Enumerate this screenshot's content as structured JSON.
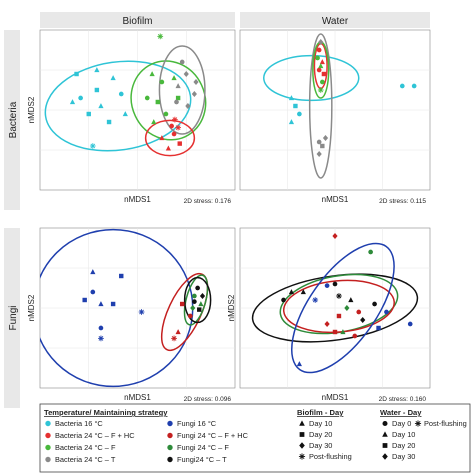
{
  "colors": {
    "b16": "#2fc4d6",
    "b24hc": "#e53030",
    "b24f": "#49b83c",
    "b24t": "#8a8a8a",
    "f16": "#1f3fae",
    "f24hc": "#c42020",
    "f24f": "#2e8b3a",
    "f24t": "#111111",
    "panel_bg": "#ffffff",
    "strip_bg": "#e8e8e8",
    "grid": "#e6e6e6"
  },
  "chart_data": [
    {
      "type": "scatter",
      "row": "Bacteria",
      "col": "Biofilm",
      "xlabel": "nMDS1",
      "ylabel": "nMDS2",
      "stress_label": "2D stress: 0.176",
      "xlim": [
        -1.2,
        1.2
      ],
      "ylim": [
        -1.0,
        1.0
      ],
      "ellipses": [
        {
          "group": "b16",
          "cx": -0.24,
          "cy": 0.05,
          "rx": 0.9,
          "ry": 0.55,
          "angle": -8
        },
        {
          "group": "b24f",
          "cx": 0.38,
          "cy": 0.12,
          "rx": 0.45,
          "ry": 0.5,
          "angle": -25
        },
        {
          "group": "b24t",
          "cx": 0.55,
          "cy": 0.25,
          "rx": 0.28,
          "ry": 0.55,
          "angle": 0
        },
        {
          "group": "b24hc",
          "cx": 0.4,
          "cy": -0.35,
          "rx": 0.3,
          "ry": 0.22,
          "angle": 0
        }
      ],
      "points": [
        {
          "group": "b16",
          "shape": "square",
          "x": -0.75,
          "y": 0.45
        },
        {
          "group": "b16",
          "shape": "square",
          "x": -0.5,
          "y": 0.25
        },
        {
          "group": "b16",
          "shape": "triangle",
          "x": -0.5,
          "y": 0.5
        },
        {
          "group": "b16",
          "shape": "triangle",
          "x": -0.3,
          "y": 0.4
        },
        {
          "group": "b16",
          "shape": "circle",
          "x": -0.2,
          "y": 0.2
        },
        {
          "group": "b16",
          "shape": "square",
          "x": -0.6,
          "y": -0.05
        },
        {
          "group": "b16",
          "shape": "triangle",
          "x": -0.45,
          "y": 0.05
        },
        {
          "group": "b16",
          "shape": "circle",
          "x": -0.7,
          "y": 0.15
        },
        {
          "group": "b16",
          "shape": "triangle",
          "x": -0.15,
          "y": -0.05
        },
        {
          "group": "b16",
          "shape": "square",
          "x": -0.35,
          "y": -0.15
        },
        {
          "group": "b16",
          "shape": "triangle",
          "x": -0.8,
          "y": 0.1
        },
        {
          "group": "b16",
          "shape": "star",
          "x": -0.55,
          "y": -0.45
        },
        {
          "group": "b24f",
          "shape": "star",
          "x": 0.28,
          "y": 0.92
        },
        {
          "group": "b24f",
          "shape": "triangle",
          "x": 0.18,
          "y": 0.45
        },
        {
          "group": "b24f",
          "shape": "circle",
          "x": 0.3,
          "y": 0.35
        },
        {
          "group": "b24f",
          "shape": "triangle",
          "x": 0.45,
          "y": 0.4
        },
        {
          "group": "b24f",
          "shape": "circle",
          "x": 0.12,
          "y": 0.15
        },
        {
          "group": "b24f",
          "shape": "square",
          "x": 0.25,
          "y": 0.1
        },
        {
          "group": "b24f",
          "shape": "circle",
          "x": 0.35,
          "y": -0.05
        },
        {
          "group": "b24f",
          "shape": "triangle",
          "x": 0.2,
          "y": -0.15
        },
        {
          "group": "b24f",
          "shape": "square",
          "x": 0.5,
          "y": 0.15
        },
        {
          "group": "b24t",
          "shape": "circle",
          "x": 0.55,
          "y": 0.6
        },
        {
          "group": "b24t",
          "shape": "diamond",
          "x": 0.6,
          "y": 0.45
        },
        {
          "group": "b24t",
          "shape": "triangle",
          "x": 0.5,
          "y": 0.3
        },
        {
          "group": "b24t",
          "shape": "diamond",
          "x": 0.7,
          "y": 0.2
        },
        {
          "group": "b24t",
          "shape": "diamond",
          "x": 0.62,
          "y": 0.05
        },
        {
          "group": "b24t",
          "shape": "circle",
          "x": 0.48,
          "y": 0.1
        },
        {
          "group": "b24t",
          "shape": "diamond",
          "x": 0.72,
          "y": 0.35
        },
        {
          "group": "b24hc",
          "shape": "triangle",
          "x": 0.3,
          "y": -0.35
        },
        {
          "group": "b24hc",
          "shape": "circle",
          "x": 0.45,
          "y": -0.3
        },
        {
          "group": "b24hc",
          "shape": "triangle",
          "x": 0.38,
          "y": -0.48
        },
        {
          "group": "b24hc",
          "shape": "square",
          "x": 0.52,
          "y": -0.42
        },
        {
          "group": "b24hc",
          "shape": "circle",
          "x": 0.42,
          "y": -0.2
        },
        {
          "group": "b24hc",
          "shape": "star",
          "x": 0.46,
          "y": -0.12
        },
        {
          "group": "b24hc",
          "shape": "star",
          "x": 0.5,
          "y": -0.22
        }
      ]
    },
    {
      "type": "scatter",
      "row": "Bacteria",
      "col": "Water",
      "xlabel": "nMDS1",
      "ylabel": "",
      "stress_label": "2D stress: 0.115",
      "xlim": [
        -1.2,
        1.2
      ],
      "ylim": [
        -1.0,
        1.0
      ],
      "ellipses": [
        {
          "group": "b16",
          "cx": -0.3,
          "cy": 0.4,
          "rx": 0.6,
          "ry": 0.28,
          "angle": 0
        },
        {
          "group": "b24t",
          "cx": -0.18,
          "cy": 0.05,
          "rx": 0.14,
          "ry": 0.9,
          "angle": 0
        },
        {
          "group": "b24hc",
          "cx": -0.18,
          "cy": 0.55,
          "rx": 0.08,
          "ry": 0.28,
          "angle": 0
        },
        {
          "group": "b24f",
          "cx": -0.18,
          "cy": 0.5,
          "rx": 0.1,
          "ry": 0.35,
          "angle": 0
        }
      ],
      "points": [
        {
          "group": "b16",
          "shape": "circle",
          "x": 0.85,
          "y": 0.3
        },
        {
          "group": "b16",
          "shape": "circle",
          "x": 1.0,
          "y": 0.3
        },
        {
          "group": "b16",
          "shape": "triangle",
          "x": -0.55,
          "y": 0.15
        },
        {
          "group": "b16",
          "shape": "square",
          "x": -0.5,
          "y": 0.05
        },
        {
          "group": "b16",
          "shape": "circle",
          "x": -0.45,
          "y": -0.05
        },
        {
          "group": "b16",
          "shape": "triangle",
          "x": -0.55,
          "y": -0.15
        },
        {
          "group": "b24hc",
          "shape": "circle",
          "x": -0.2,
          "y": 0.75
        },
        {
          "group": "b24hc",
          "shape": "triangle",
          "x": -0.16,
          "y": 0.6
        },
        {
          "group": "b24hc",
          "shape": "circle",
          "x": -0.2,
          "y": 0.5
        },
        {
          "group": "b24hc",
          "shape": "square",
          "x": -0.14,
          "y": 0.45
        },
        {
          "group": "b24f",
          "shape": "circle",
          "x": -0.22,
          "y": 0.65
        },
        {
          "group": "b24f",
          "shape": "triangle",
          "x": -0.18,
          "y": 0.55
        },
        {
          "group": "b24f",
          "shape": "circle",
          "x": -0.16,
          "y": 0.35
        },
        {
          "group": "b24f",
          "shape": "star",
          "x": -0.18,
          "y": 0.25
        },
        {
          "group": "b24t",
          "shape": "diamond",
          "x": -0.18,
          "y": 0.85
        },
        {
          "group": "b24t",
          "shape": "diamond",
          "x": -0.12,
          "y": -0.35
        },
        {
          "group": "b24t",
          "shape": "square",
          "x": -0.16,
          "y": -0.45
        },
        {
          "group": "b24t",
          "shape": "diamond",
          "x": -0.2,
          "y": -0.55
        },
        {
          "group": "b24t",
          "shape": "circle",
          "x": -0.2,
          "y": -0.4
        }
      ]
    },
    {
      "type": "scatter",
      "row": "Fungi",
      "col": "Biofilm",
      "xlabel": "nMDS1",
      "ylabel": "nMDS2",
      "stress_label": "2D stress: 0.096",
      "xlim": [
        -1.2,
        1.2
      ],
      "ylim": [
        -1.0,
        1.0
      ],
      "ellipses": [
        {
          "group": "f16",
          "cx": -0.3,
          "cy": 0.0,
          "rx": 0.98,
          "ry": 0.98,
          "angle": 0
        },
        {
          "group": "f24hc",
          "cx": 0.58,
          "cy": -0.05,
          "rx": 0.2,
          "ry": 0.52,
          "angle": 25
        },
        {
          "group": "f24f",
          "cx": 0.72,
          "cy": 0.1,
          "rx": 0.12,
          "ry": 0.32,
          "angle": 15
        },
        {
          "group": "f24t",
          "cx": 0.74,
          "cy": 0.1,
          "rx": 0.16,
          "ry": 0.28,
          "angle": 0
        }
      ],
      "points": [
        {
          "group": "f16",
          "shape": "triangle",
          "x": -0.55,
          "y": 0.45
        },
        {
          "group": "f16",
          "shape": "square",
          "x": -0.2,
          "y": 0.4
        },
        {
          "group": "f16",
          "shape": "square",
          "x": -0.65,
          "y": 0.1
        },
        {
          "group": "f16",
          "shape": "circle",
          "x": -0.55,
          "y": 0.2
        },
        {
          "group": "f16",
          "shape": "triangle",
          "x": -0.45,
          "y": 0.05
        },
        {
          "group": "f16",
          "shape": "square",
          "x": -0.3,
          "y": 0.05
        },
        {
          "group": "f16",
          "shape": "circle",
          "x": -0.45,
          "y": -0.25
        },
        {
          "group": "f16",
          "shape": "star",
          "x": -0.45,
          "y": -0.38
        },
        {
          "group": "f16",
          "shape": "star",
          "x": 0.05,
          "y": -0.05
        },
        {
          "group": "f24hc",
          "shape": "star",
          "x": 0.45,
          "y": -0.38
        },
        {
          "group": "f24hc",
          "shape": "triangle",
          "x": 0.5,
          "y": -0.3
        },
        {
          "group": "f24hc",
          "shape": "circle",
          "x": 0.65,
          "y": -0.1
        },
        {
          "group": "f24hc",
          "shape": "square",
          "x": 0.55,
          "y": 0.05
        },
        {
          "group": "f24f",
          "shape": "circle",
          "x": 0.7,
          "y": 0.15
        },
        {
          "group": "f24f",
          "shape": "triangle",
          "x": 0.78,
          "y": 0.05
        },
        {
          "group": "f24f",
          "shape": "diamond",
          "x": 0.68,
          "y": 0.0
        },
        {
          "group": "f24t",
          "shape": "circle",
          "x": 0.74,
          "y": 0.25
        },
        {
          "group": "f24t",
          "shape": "diamond",
          "x": 0.8,
          "y": 0.15
        },
        {
          "group": "f24t",
          "shape": "circle",
          "x": 0.7,
          "y": 0.08
        },
        {
          "group": "f24t",
          "shape": "square",
          "x": 0.76,
          "y": -0.02
        }
      ]
    },
    {
      "type": "scatter",
      "row": "Fungi",
      "col": "Water",
      "xlabel": "nMDS1",
      "ylabel": "nMDS2",
      "stress_label": "2D stress: 0.160",
      "xlim": [
        -1.2,
        1.2
      ],
      "ylim": [
        -1.0,
        1.0
      ],
      "ellipses": [
        {
          "group": "f24t",
          "cx": 0.0,
          "cy": 0.0,
          "rx": 1.05,
          "ry": 0.4,
          "angle": -8
        },
        {
          "group": "f24f",
          "cx": 0.05,
          "cy": 0.05,
          "rx": 0.75,
          "ry": 0.35,
          "angle": -10
        },
        {
          "group": "f24hc",
          "cx": 0.05,
          "cy": 0.02,
          "rx": 0.7,
          "ry": 0.32,
          "angle": -5
        },
        {
          "group": "f16",
          "cx": 0.1,
          "cy": 0.0,
          "rx": 0.95,
          "ry": 0.42,
          "angle": -55
        }
      ],
      "points": [
        {
          "group": "f24hc",
          "shape": "diamond",
          "x": 0.0,
          "y": 0.9
        },
        {
          "group": "f24f",
          "shape": "circle",
          "x": 0.45,
          "y": 0.7
        },
        {
          "group": "f16",
          "shape": "triangle",
          "x": -0.45,
          "y": -0.7
        },
        {
          "group": "f24t",
          "shape": "triangle",
          "x": -0.55,
          "y": 0.2
        },
        {
          "group": "f24t",
          "shape": "triangle",
          "x": -0.4,
          "y": 0.2
        },
        {
          "group": "f16",
          "shape": "circle",
          "x": -0.1,
          "y": 0.28
        },
        {
          "group": "f24t",
          "shape": "circle",
          "x": 0.0,
          "y": 0.3
        },
        {
          "group": "f24t",
          "shape": "star",
          "x": 0.05,
          "y": 0.15
        },
        {
          "group": "f24t",
          "shape": "triangle",
          "x": 0.2,
          "y": 0.1
        },
        {
          "group": "f24f",
          "shape": "diamond",
          "x": 0.15,
          "y": 0.0
        },
        {
          "group": "f24hc",
          "shape": "square",
          "x": 0.05,
          "y": -0.1
        },
        {
          "group": "f24hc",
          "shape": "circle",
          "x": 0.3,
          "y": -0.05
        },
        {
          "group": "f24t",
          "shape": "circle",
          "x": 0.5,
          "y": 0.05
        },
        {
          "group": "f16",
          "shape": "square",
          "x": 0.55,
          "y": -0.25
        },
        {
          "group": "f16",
          "shape": "circle",
          "x": 0.65,
          "y": -0.05
        },
        {
          "group": "f24hc",
          "shape": "diamond",
          "x": -0.1,
          "y": -0.2
        },
        {
          "group": "f24hc",
          "shape": "square",
          "x": 0.0,
          "y": -0.3
        },
        {
          "group": "f16",
          "shape": "star",
          "x": -0.25,
          "y": 0.1
        },
        {
          "group": "f24f",
          "shape": "triangle",
          "x": 0.1,
          "y": -0.3
        },
        {
          "group": "f24t",
          "shape": "diamond",
          "x": 0.35,
          "y": -0.15
        },
        {
          "group": "f24hc",
          "shape": "circle",
          "x": 0.25,
          "y": -0.35
        },
        {
          "group": "f16",
          "shape": "circle",
          "x": 0.95,
          "y": -0.2
        },
        {
          "group": "f24t",
          "shape": "circle",
          "x": -0.65,
          "y": 0.1
        }
      ]
    }
  ],
  "strips": {
    "col_biofilm": "Biofilm",
    "col_water": "Water",
    "row_bacteria": "Bacteria",
    "row_fungi": "Fungi"
  },
  "legend": {
    "strategy_title": "Temperature/ Maintaining strategy",
    "strategy_items": [
      {
        "group": "b16",
        "label": "Bacteria 16 °C"
      },
      {
        "group": "f16",
        "label": "Fungi 16 °C"
      },
      {
        "group": "b24hc",
        "label": "Bacteria 24 °C – F + HC"
      },
      {
        "group": "f24hc",
        "label": "Fungi 24 °C – F + HC"
      },
      {
        "group": "b24f",
        "label": "Bacteria 24 °C – F"
      },
      {
        "group": "f24f",
        "label": "Fungi 24 °C – F"
      },
      {
        "group": "b24t",
        "label": "Bacteria 24 °C – T"
      },
      {
        "group": "f24t",
        "label": "Fungi24 °C – T"
      }
    ],
    "biofilm_title": "Biofilm - Day",
    "biofilm_items": [
      {
        "shape": "triangle",
        "label": "Day 10"
      },
      {
        "shape": "square",
        "label": "Day 20"
      },
      {
        "shape": "diamond",
        "label": "Day 30"
      },
      {
        "shape": "star",
        "label": "Post-flushing"
      }
    ],
    "water_title": "Water - Day",
    "water_items": [
      {
        "shape": "circle",
        "label": "Day 0"
      },
      {
        "shape": "triangle",
        "label": "Day 10"
      },
      {
        "shape": "square",
        "label": "Day 20"
      },
      {
        "shape": "diamond",
        "label": "Day 30"
      }
    ],
    "water_extra": {
      "shape": "star",
      "label": "Post-flushing"
    }
  }
}
